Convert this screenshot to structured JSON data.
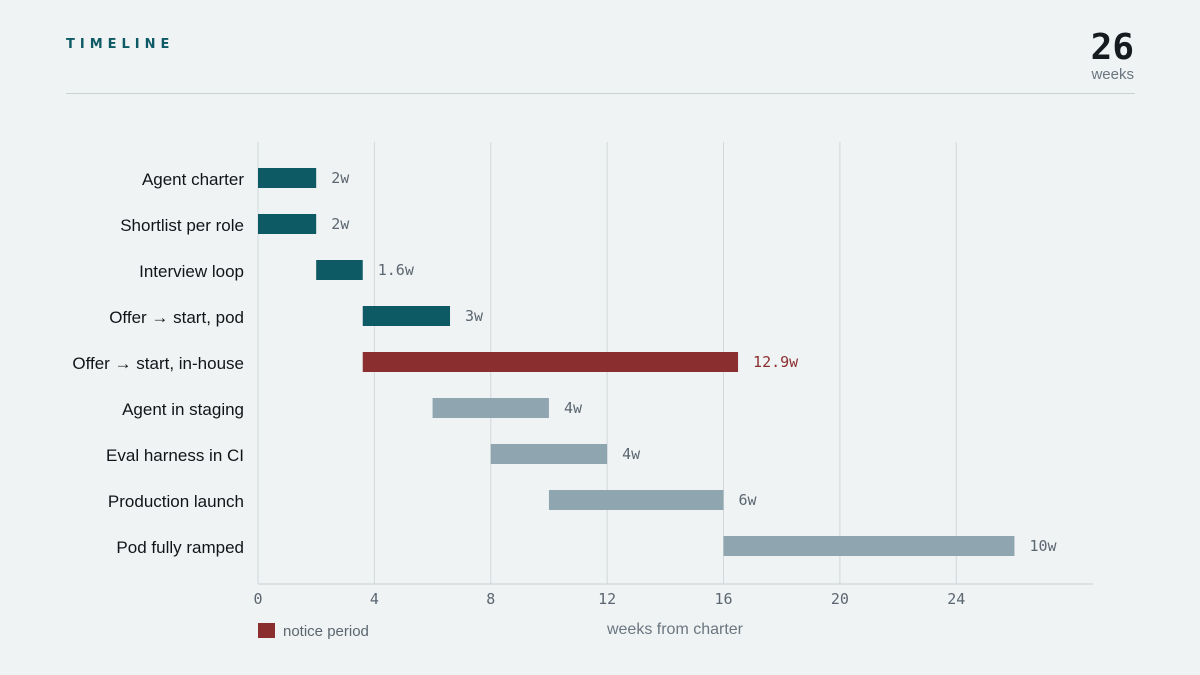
{
  "header": {
    "title": "TIMELINE",
    "total_value": "26",
    "total_unit": "weeks"
  },
  "legend": {
    "label": "notice period",
    "color": "#8b2e2f"
  },
  "colors": {
    "primary": "#0e5a64",
    "notice": "#8b2e2f",
    "later": "#8fa6b0"
  },
  "chart_data": {
    "type": "bar",
    "orientation": "horizontal-gantt",
    "xlabel": "weeks from charter",
    "xlim": [
      0,
      28.7
    ],
    "xticks": [
      0,
      4,
      8,
      12,
      16,
      20,
      24
    ],
    "grid": true,
    "legend_placement": "bottom-left",
    "tasks": [
      {
        "label": "Agent charter",
        "start": 0,
        "end": 2,
        "duration_label": "2w",
        "group": "primary"
      },
      {
        "label": "Shortlist per role",
        "start": 0,
        "end": 2,
        "duration_label": "2w",
        "group": "primary"
      },
      {
        "label": "Interview loop",
        "start": 2,
        "end": 3.6,
        "duration_label": "1.6w",
        "group": "primary"
      },
      {
        "label": "Offer → start, pod",
        "start": 3.6,
        "end": 6.6,
        "duration_label": "3w",
        "group": "primary"
      },
      {
        "label": "Offer → start, in-house",
        "start": 3.6,
        "end": 16.5,
        "duration_label": "12.9w",
        "group": "notice"
      },
      {
        "label": "Agent in staging",
        "start": 6,
        "end": 10,
        "duration_label": "4w",
        "group": "later"
      },
      {
        "label": "Eval harness in CI",
        "start": 8,
        "end": 12,
        "duration_label": "4w",
        "group": "later"
      },
      {
        "label": "Production launch",
        "start": 10,
        "end": 16,
        "duration_label": "6w",
        "group": "later"
      },
      {
        "label": "Pod fully ramped",
        "start": 16,
        "end": 26,
        "duration_label": "10w",
        "group": "later"
      }
    ]
  }
}
